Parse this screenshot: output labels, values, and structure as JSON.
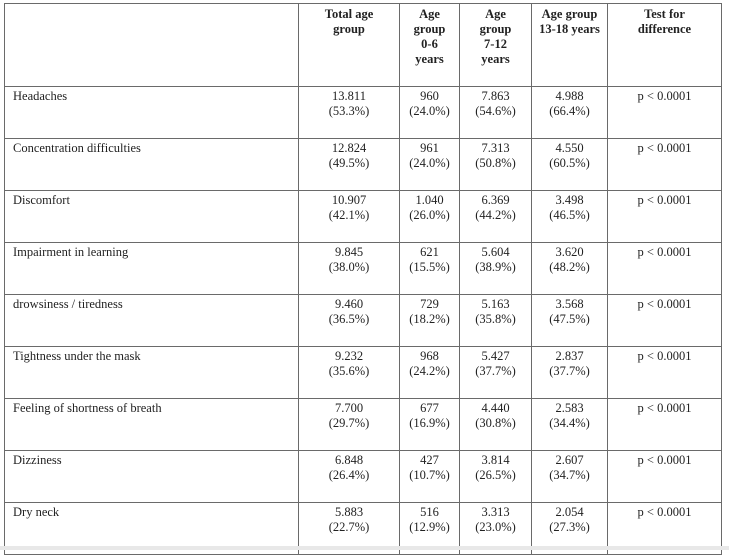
{
  "table": {
    "headers": [
      "",
      "Total age group",
      "Age group 0-6 years",
      "Age group 7-12 years",
      "Age group 13-18 years",
      "Test for difference"
    ],
    "rows": [
      {
        "label": "Headaches",
        "total": "13.811",
        "total_pct": "(53.3%)",
        "g1": "960",
        "g1_pct": "(24.0%)",
        "g2": "7.863",
        "g2_pct": "(54.6%)",
        "g3": "4.988",
        "g3_pct": "(66.4%)",
        "p": "p < 0.0001"
      },
      {
        "label": "Concentration difficulties",
        "total": "12.824",
        "total_pct": "(49.5%)",
        "g1": "961",
        "g1_pct": "(24.0%)",
        "g2": "7.313",
        "g2_pct": "(50.8%)",
        "g3": "4.550",
        "g3_pct": "(60.5%)",
        "p": "p < 0.0001"
      },
      {
        "label": "Discomfort",
        "total": "10.907",
        "total_pct": "(42.1%)",
        "g1": "1.040",
        "g1_pct": "(26.0%)",
        "g2": "6.369",
        "g2_pct": "(44.2%)",
        "g3": "3.498",
        "g3_pct": "(46.5%)",
        "p": "p < 0.0001"
      },
      {
        "label": "Impairment in learning",
        "total": "9.845",
        "total_pct": "(38.0%)",
        "g1": "621",
        "g1_pct": "(15.5%)",
        "g2": "5.604",
        "g2_pct": "(38.9%)",
        "g3": "3.620",
        "g3_pct": "(48.2%)",
        "p": "p < 0.0001"
      },
      {
        "label": "drowsiness / tiredness",
        "total": "9.460",
        "total_pct": "(36.5%)",
        "g1": "729",
        "g1_pct": "(18.2%)",
        "g2": "5.163",
        "g2_pct": "(35.8%)",
        "g3": "3.568",
        "g3_pct": "(47.5%)",
        "p": "p < 0.0001"
      },
      {
        "label": "Tightness under the mask",
        "total": "9.232",
        "total_pct": "(35.6%)",
        "g1": "968",
        "g1_pct": "(24.2%)",
        "g2": "5.427",
        "g2_pct": "(37.7%)",
        "g3": "2.837",
        "g3_pct": "(37.7%)",
        "p": "p < 0.0001"
      },
      {
        "label": "Feeling of shortness of breath",
        "total": "7.700",
        "total_pct": "(29.7%)",
        "g1": "677",
        "g1_pct": "(16.9%)",
        "g2": "4.440",
        "g2_pct": "(30.8%)",
        "g3": "2.583",
        "g3_pct": "(34.4%)",
        "p": "p < 0.0001"
      },
      {
        "label": "Dizziness",
        "total": "6.848",
        "total_pct": "(26.4%)",
        "g1": "427",
        "g1_pct": "(10.7%)",
        "g2": "3.814",
        "g2_pct": "(26.5%)",
        "g3": "2.607",
        "g3_pct": "(34.7%)",
        "p": "p < 0.0001"
      },
      {
        "label": "Dry neck",
        "total": "5.883",
        "total_pct": "(22.7%)",
        "g1": "516",
        "g1_pct": "(12.9%)",
        "g2": "3.313",
        "g2_pct": "(23.0%)",
        "g3": "2.054",
        "g3_pct": "(27.3%)",
        "p": "p < 0.0001"
      }
    ]
  }
}
